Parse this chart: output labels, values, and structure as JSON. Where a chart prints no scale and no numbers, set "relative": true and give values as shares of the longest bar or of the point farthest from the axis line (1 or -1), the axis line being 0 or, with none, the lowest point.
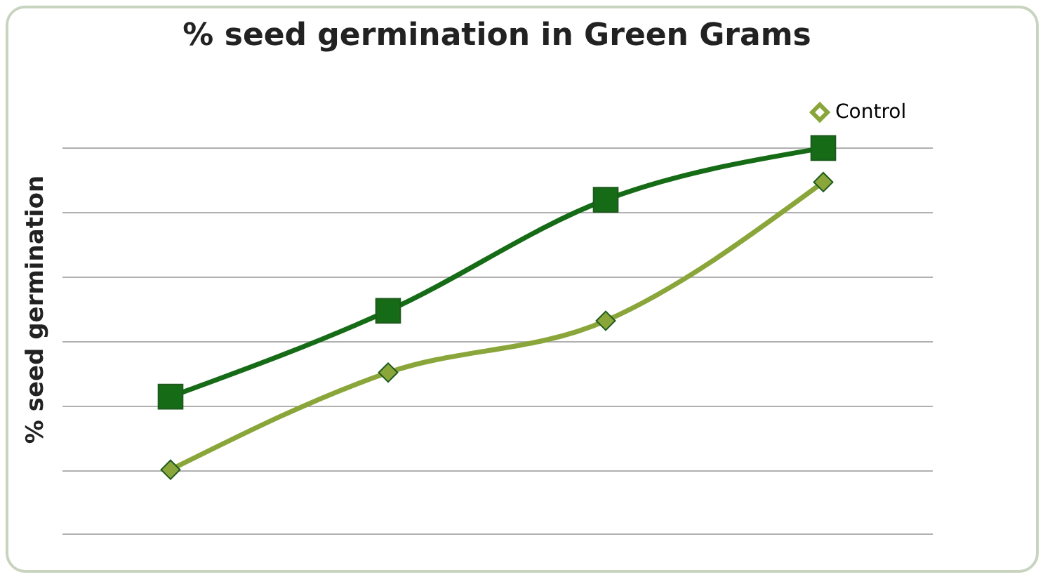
{
  "chart_data": {
    "type": "line",
    "title": "% seed germination in Green Grams",
    "ylabel": "% seed germination",
    "categories": [
      null,
      null,
      null,
      null
    ],
    "relative": true,
    "grid": "y",
    "legend": "top right",
    "series": [
      {
        "color": "#166b16",
        "marker": "square",
        "values": [
          0.227,
          0.494,
          0.839,
          1
        ]
      },
      {
        "name": "Control",
        "color": "#8aa63a",
        "marker": "diamond",
        "values": [
          0,
          0.302,
          0.463,
          0.894
        ]
      }
    ]
  }
}
